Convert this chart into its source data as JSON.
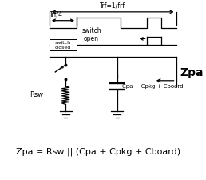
{
  "fig_width": 2.58,
  "fig_height": 2.25,
  "dpi": 100,
  "bg_color": "#ffffff",
  "line_color": "#000000",
  "label_trf": "Trf=1/frf",
  "label_trf4": "Trf/4",
  "label_switch_closed": "switch\nclosed",
  "label_switch_open": "switch\nopen",
  "label_zpa": "Zpa",
  "label_rsw": "Rsw",
  "label_cap": "Cpa + Cpkg + Cboard",
  "formula": "Zpa = Rsw || (Cpa + Cpkg + Cboard)"
}
